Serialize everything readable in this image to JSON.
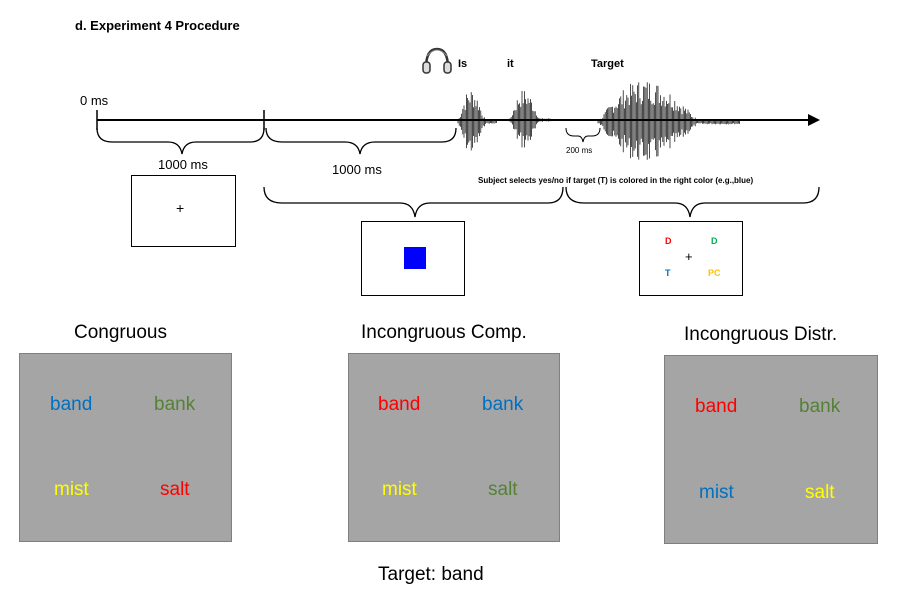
{
  "title": "d. Experiment 4 Procedure",
  "timeline": {
    "start_label": "0 ms",
    "interval1": "1000 ms",
    "interval2": "1000 ms",
    "gap_label": "200 ms",
    "instruction": "Subject selects yes/no if target (T) is colored in the right color (e.g.,blue)",
    "audio_words": [
      "Is",
      "it",
      "Target"
    ]
  },
  "screens": {
    "fixation": "+",
    "cue_color": "#0000ff",
    "response": {
      "fixation": "+",
      "letters": [
        {
          "text": "D",
          "color": "#ff0000"
        },
        {
          "text": "D",
          "color": "#00b050"
        },
        {
          "text": "T",
          "color": "#0070c0"
        },
        {
          "text": "PC",
          "color": "#ffc000"
        }
      ]
    }
  },
  "conditions": [
    {
      "title": "Congruous",
      "words": [
        {
          "text": "band",
          "color": "#0070c0"
        },
        {
          "text": "bank",
          "color": "#548235"
        },
        {
          "text": "mist",
          "color": "#ffff00"
        },
        {
          "text": "salt",
          "color": "#ff0000"
        }
      ]
    },
    {
      "title": "Incongruous Comp.",
      "words": [
        {
          "text": "band",
          "color": "#ff0000"
        },
        {
          "text": "bank",
          "color": "#0070c0"
        },
        {
          "text": "mist",
          "color": "#ffff00"
        },
        {
          "text": "salt",
          "color": "#548235"
        }
      ]
    },
    {
      "title": "Incongruous Distr.",
      "words": [
        {
          "text": "band",
          "color": "#ff0000"
        },
        {
          "text": "bank",
          "color": "#548235"
        },
        {
          "text": "mist",
          "color": "#0070c0"
        },
        {
          "text": "salt",
          "color": "#ffff00"
        }
      ]
    }
  ],
  "target_caption": "Target: band"
}
